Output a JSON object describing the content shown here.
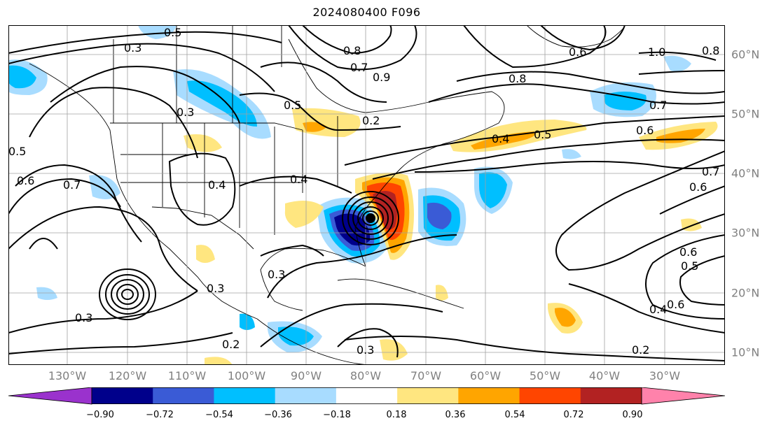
{
  "title": "2024080400 F096",
  "map": {
    "lon_labels": [
      "130°W",
      "120°W",
      "110°W",
      "100°W",
      "90°W",
      "80°W",
      "70°W",
      "60°W",
      "50°W",
      "40°W",
      "30°W"
    ],
    "lat_labels": [
      "60°N",
      "50°N",
      "40°N",
      "30°N",
      "20°N",
      "10°N"
    ],
    "contour_labels": [
      "0.5",
      "0.3",
      "0.8",
      "0.7",
      "0.6",
      "0.5",
      "1.0",
      "0.8",
      "0.7",
      "0.2",
      "0.3",
      "0.4",
      "0.7",
      "0.6",
      "0.6",
      "0.4",
      "0.5",
      "0.4",
      "0.6",
      "0.5",
      "0.3",
      "0.3",
      "0.2",
      "0.3",
      "0.3",
      "0.2",
      "0.4",
      "0.6",
      "0.5",
      "0.7",
      "0.6",
      "0.9",
      "0.8"
    ],
    "shading_colors": {
      "strong_negative": "#00008b",
      "negative": "#3a5bd6",
      "moderate_negative": "#00bfff",
      "weak_negative": "#a8dcff",
      "weak_positive": "#ffe680",
      "moderate_positive": "#ffa500",
      "positive": "#ff4500",
      "strong_positive": "#b22222"
    }
  },
  "colorbar": {
    "ticks": [
      "−0.90",
      "−0.72",
      "−0.54",
      "−0.36",
      "−0.18",
      "0.18",
      "0.36",
      "0.54",
      "0.72",
      "0.90"
    ],
    "colors": [
      "#9a32cd",
      "#00008b",
      "#3a5bd6",
      "#00bfff",
      "#a8dcff",
      "#ffffff",
      "#ffe680",
      "#ffa500",
      "#ff4500",
      "#b22222",
      "#ff82ab"
    ]
  }
}
